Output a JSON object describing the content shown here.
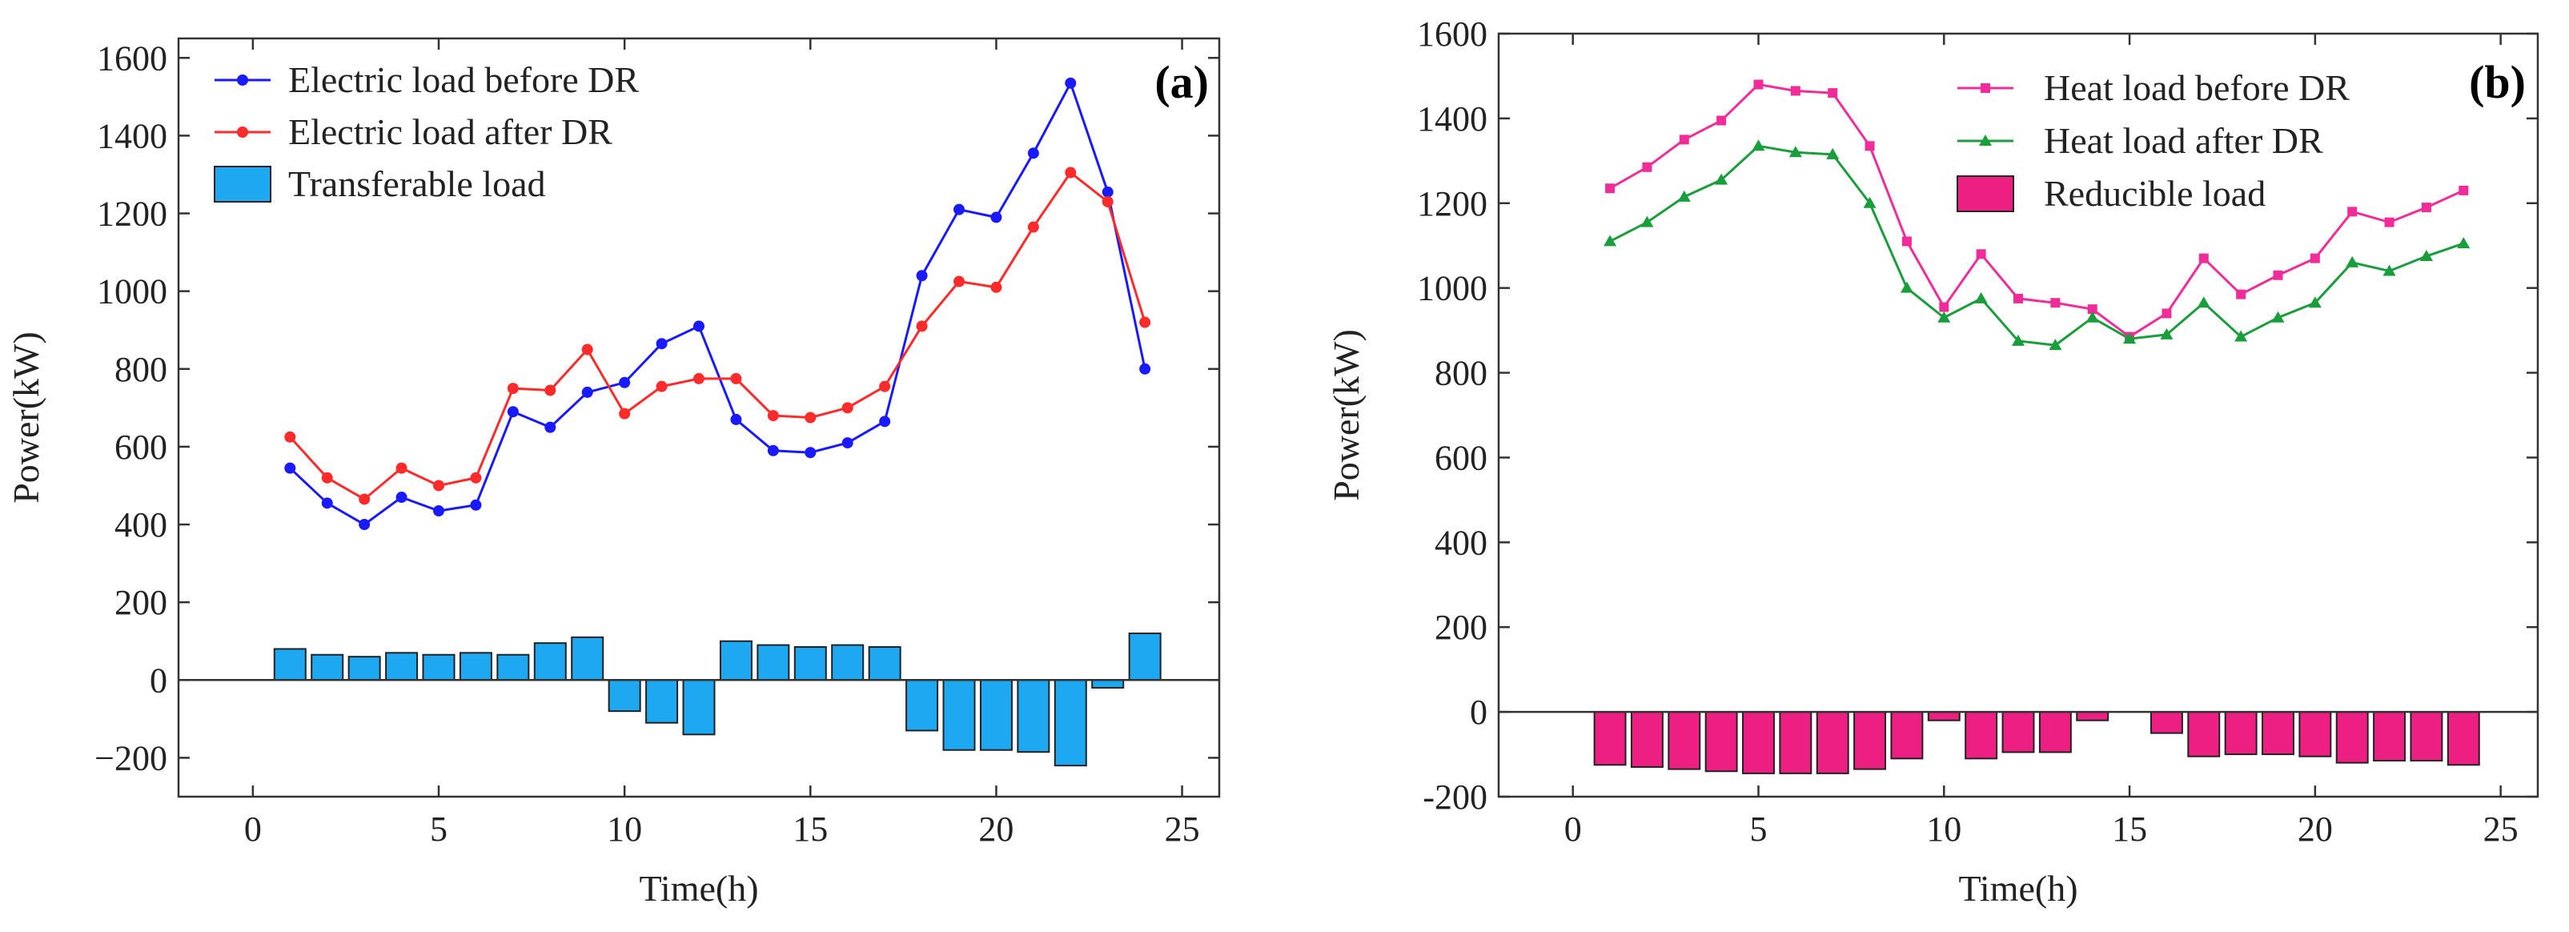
{
  "chart_data": [
    {
      "type": "bar+line",
      "panel_label": "(a)",
      "xlabel": "Time(h)",
      "ylabel": "Power(kW)",
      "xlim": [
        -2,
        26
      ],
      "ylim": [
        -300,
        1650
      ],
      "xticks": [
        0,
        5,
        10,
        15,
        20,
        25
      ],
      "yticks": [
        -200,
        0,
        200,
        400,
        600,
        800,
        1000,
        1200,
        1400,
        1600
      ],
      "ytick_labels": [
        "−200",
        "0",
        "200",
        "400",
        "600",
        "800",
        "1000",
        "1200",
        "1400",
        "1600"
      ],
      "legend_position": "top-left",
      "x": [
        1,
        2,
        3,
        4,
        5,
        6,
        7,
        8,
        9,
        10,
        11,
        12,
        13,
        14,
        15,
        16,
        17,
        18,
        19,
        20,
        21,
        22,
        23,
        24
      ],
      "series": [
        {
          "name": "Electric load before DR",
          "kind": "line",
          "color": "#1a1aff",
          "marker": "circle",
          "values": [
            545,
            455,
            400,
            470,
            435,
            450,
            690,
            650,
            740,
            765,
            865,
            910,
            670,
            590,
            585,
            610,
            665,
            1040,
            1210,
            1190,
            1355,
            1535,
            1255,
            800
          ]
        },
        {
          "name": "Electric load after DR",
          "kind": "line",
          "color": "#ff2a2a",
          "marker": "circle",
          "values": [
            625,
            520,
            465,
            545,
            500,
            520,
            750,
            745,
            850,
            685,
            755,
            775,
            775,
            680,
            675,
            700,
            755,
            910,
            1025,
            1010,
            1165,
            1305,
            1230,
            920
          ]
        },
        {
          "name": "Transferable load",
          "kind": "bar",
          "color": "#1fa8f2",
          "values": [
            80,
            65,
            60,
            70,
            65,
            70,
            65,
            95,
            110,
            -80,
            -110,
            -140,
            100,
            90,
            85,
            90,
            85,
            -130,
            -180,
            -180,
            -185,
            -220,
            -20,
            120
          ]
        }
      ]
    },
    {
      "type": "bar+line",
      "panel_label": "(b)",
      "xlabel": "Time(h)",
      "ylabel": "Power(kW)",
      "xlim": [
        -2,
        26
      ],
      "ylim": [
        -200,
        1600
      ],
      "xticks": [
        0,
        5,
        10,
        15,
        20,
        25
      ],
      "yticks": [
        -200,
        0,
        200,
        400,
        600,
        800,
        1000,
        1200,
        1400,
        1600
      ],
      "ytick_labels": [
        "-200",
        "0",
        "200",
        "400",
        "600",
        "800",
        "1000",
        "1200",
        "1400",
        "1600"
      ],
      "legend_position": "top-right",
      "x": [
        1,
        2,
        3,
        4,
        5,
        6,
        7,
        8,
        9,
        10,
        11,
        12,
        13,
        14,
        15,
        16,
        17,
        18,
        19,
        20,
        21,
        22,
        23,
        24
      ],
      "series": [
        {
          "name": "Heat load before DR",
          "kind": "line",
          "color": "#f02c9a",
          "marker": "square",
          "values": [
            1235,
            1285,
            1350,
            1395,
            1480,
            1465,
            1460,
            1335,
            1110,
            955,
            1080,
            975,
            965,
            950,
            885,
            940,
            1070,
            985,
            1030,
            1070,
            1180,
            1155,
            1190,
            1230
          ]
        },
        {
          "name": "Heat load after DR",
          "kind": "line",
          "color": "#1a9e3c",
          "marker": "triangle",
          "values": [
            1110,
            1155,
            1215,
            1255,
            1335,
            1320,
            1315,
            1200,
            1000,
            930,
            975,
            875,
            865,
            930,
            880,
            890,
            965,
            885,
            930,
            965,
            1060,
            1040,
            1075,
            1105
          ]
        },
        {
          "name": "Reducible load",
          "kind": "bar",
          "color": "#ee1f82",
          "values": [
            -125,
            -130,
            -135,
            -140,
            -145,
            -145,
            -145,
            -135,
            -110,
            -20,
            -110,
            -95,
            -95,
            -20,
            0,
            -50,
            -105,
            -100,
            -100,
            -105,
            -120,
            -115,
            -115,
            -125
          ]
        }
      ]
    }
  ]
}
